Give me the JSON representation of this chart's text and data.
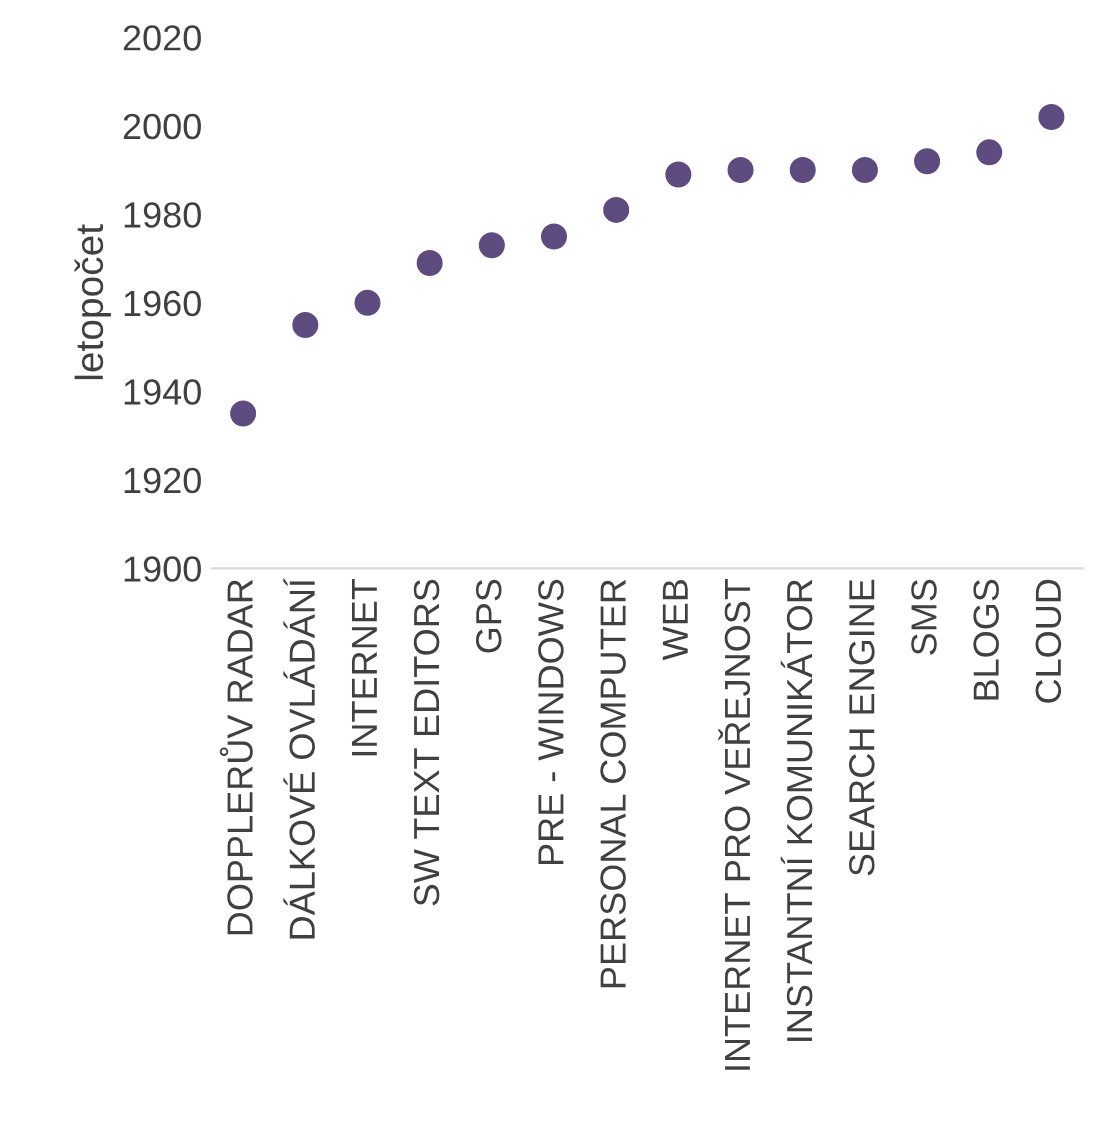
{
  "chart_data": {
    "type": "scatter",
    "ylabel": "letopočet",
    "categories": [
      "DOPPLERŮV RADAR",
      "DÁLKOVÉ OVLÁDÁNÍ",
      "INTERNET",
      "SW TEXT EDITORS",
      "GPS",
      "PRE - WINDOWS",
      "PERSONAL COMPUTER",
      "WEB",
      "INTERNET PRO VEŘEJNOST",
      "INSTANTNÍ KOMUNIKÁTOR",
      "SEARCH ENGINE",
      "SMS",
      "BLOGS",
      "CLOUD"
    ],
    "values": [
      1935,
      1955,
      1960,
      1969,
      1973,
      1975,
      1981,
      1989,
      1990,
      1990,
      1990,
      1992,
      1994,
      2002
    ],
    "color": "#5e4b7f",
    "marker": "circle",
    "ylim": [
      1900,
      2020
    ],
    "yticks": [
      1900,
      1920,
      1940,
      1960,
      1980,
      2000,
      2020
    ],
    "grid": false,
    "legend": false
  }
}
